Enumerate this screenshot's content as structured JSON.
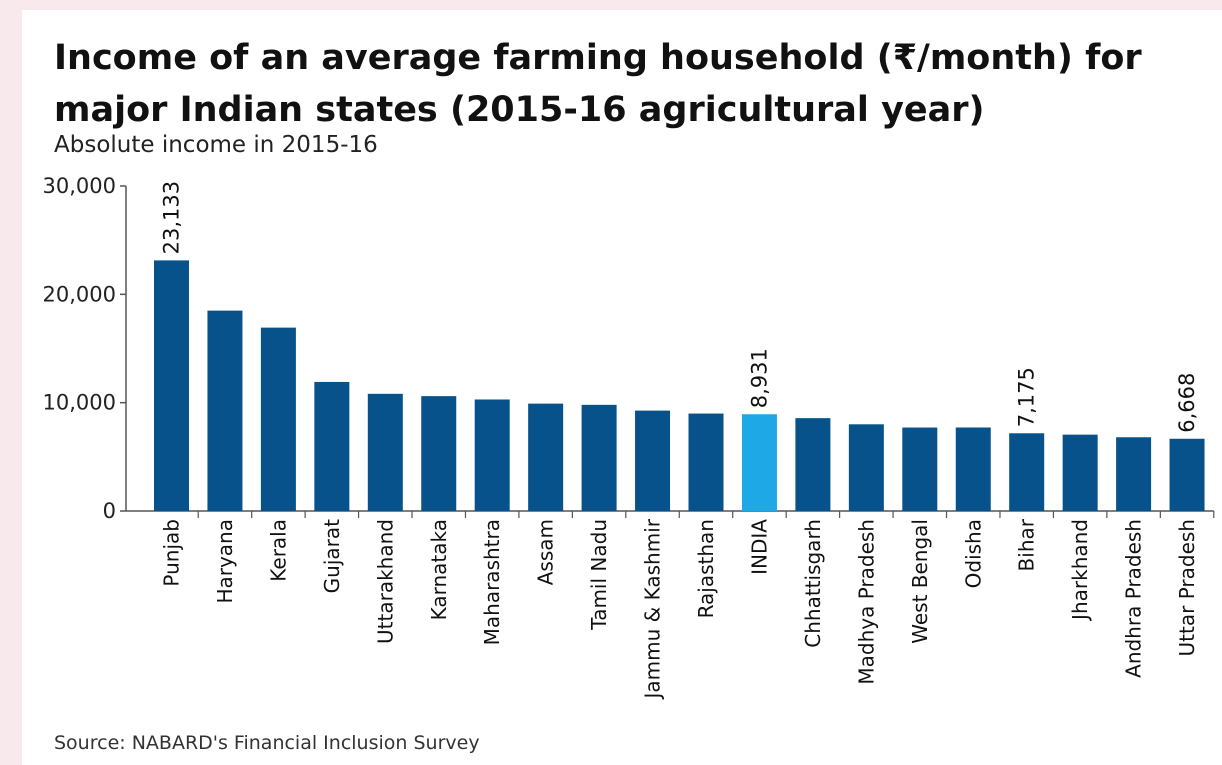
{
  "chart_data": {
    "type": "bar",
    "title": "Income of an average farming household (₹/month) for major Indian states (2015-16 agricultural year)",
    "subtitle": "Absolute income in 2015-16",
    "source": "Source: NABARD's Financial Inclusion Survey",
    "categories": [
      "Punjab",
      "Haryana",
      "Kerala",
      "Gujarat",
      "Uttarakhand",
      "Karnataka",
      "Maharashtra",
      "Assam",
      "Tamil Nadu",
      "Jammu & Kashmir",
      "Rajasthan",
      "INDIA",
      "Chhattisgarh",
      "Madhya Pradesh",
      "West Bengal",
      "Odisha",
      "Bihar",
      "Jharkhand",
      "Andhra Pradesh",
      "Uttar Pradesh"
    ],
    "values": [
      23133,
      18496,
      16927,
      11914,
      10817,
      10603,
      10293,
      9910,
      9799,
      9267,
      8995,
      8931,
      8570,
      8003,
      7704,
      7708,
      7175,
      7049,
      6807,
      6668
    ],
    "data_labels": {
      "Punjab": "23,133",
      "INDIA": "8,931",
      "Bihar": "7,175",
      "Uttar Pradesh": "6,668"
    },
    "highlight": "INDIA",
    "ylim": [
      0,
      30000
    ],
    "yticks": [
      0,
      10000,
      20000,
      30000
    ],
    "ytick_labels": [
      "0",
      "10,000",
      "20,000",
      "30,000"
    ],
    "grid": false,
    "colors": {
      "bar": "#07528a",
      "highlight": "#1ea8e6",
      "axis": "#555555"
    }
  }
}
